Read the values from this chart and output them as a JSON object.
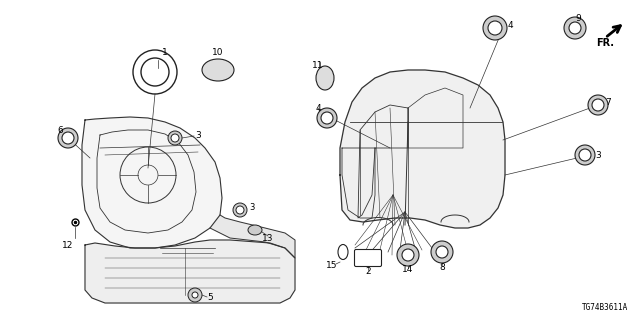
{
  "bg_color": "#ffffff",
  "part_code": "TG74B3611A",
  "line_color": "#333333",
  "label_color": "#000000"
}
